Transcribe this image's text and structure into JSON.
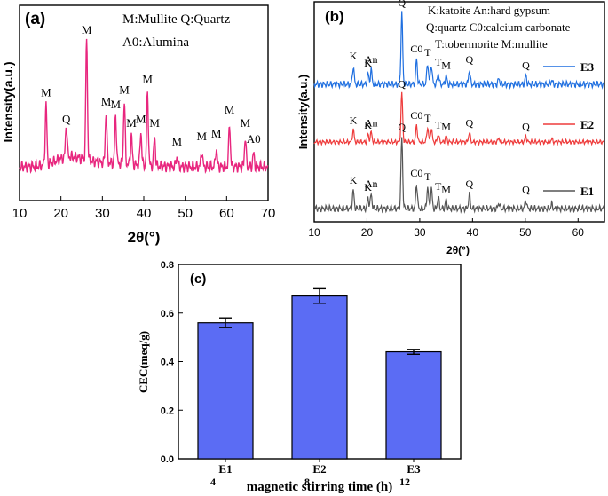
{
  "chart_data": [
    {
      "id": "a",
      "type": "line",
      "panel_label": "(a)",
      "xlabel": "2θ(°)",
      "ylabel": "Intensity(a.u.)",
      "xlim": [
        10,
        70
      ],
      "xticks": [
        "10",
        "20",
        "30",
        "40",
        "50",
        "60",
        "70"
      ],
      "legend_lines": [
        "M:Mullite   Q:Quartz",
        "A0:Alumina"
      ],
      "color": "#e8267e",
      "peaks": [
        {
          "x": 16.4,
          "h": 0.45,
          "label": "M"
        },
        {
          "x": 21.3,
          "h": 0.25,
          "label": "Q"
        },
        {
          "x": 26.2,
          "h": 0.92,
          "label": "M"
        },
        {
          "x": 30.9,
          "h": 0.38,
          "label": "M"
        },
        {
          "x": 33.2,
          "h": 0.36,
          "label": "M"
        },
        {
          "x": 35.3,
          "h": 0.47,
          "label": "M"
        },
        {
          "x": 37.0,
          "h": 0.22,
          "label": "M"
        },
        {
          "x": 39.3,
          "h": 0.25,
          "label": "M"
        },
        {
          "x": 40.9,
          "h": 0.55,
          "label": "M"
        },
        {
          "x": 42.6,
          "h": 0.22,
          "label": "M"
        },
        {
          "x": 48.0,
          "h": 0.08,
          "label": "M"
        },
        {
          "x": 54.0,
          "h": 0.12,
          "label": "M"
        },
        {
          "x": 57.5,
          "h": 0.14,
          "label": "M"
        },
        {
          "x": 60.7,
          "h": 0.32,
          "label": "M"
        },
        {
          "x": 64.5,
          "h": 0.22,
          "label": "M"
        },
        {
          "x": 66.5,
          "h": 0.1,
          "label": "A0"
        }
      ]
    },
    {
      "id": "b",
      "type": "line",
      "panel_label": "(b)",
      "xlabel": "2θ(°)",
      "ylabel": "Intensity(a.u.)",
      "xlim": [
        10,
        65
      ],
      "xticks": [
        "10",
        "20",
        "30",
        "40",
        "50",
        "60"
      ],
      "legend_lines": [
        "K:katoite   An:hard gypsum",
        "Q:quartz   C0:calcium carbonate",
        "T:tobermorite   M:mullite"
      ],
      "peaks": [
        {
          "x": 17.4,
          "h": 0.25,
          "label": "K"
        },
        {
          "x": 20.2,
          "h": 0.15,
          "label": "K"
        },
        {
          "x": 20.8,
          "h": 0.2,
          "label": "An"
        },
        {
          "x": 26.6,
          "h": 1.0,
          "label": "Q"
        },
        {
          "x": 29.4,
          "h": 0.35,
          "label": "C0"
        },
        {
          "x": 31.5,
          "h": 0.3,
          "label": "T"
        },
        {
          "x": 32.2,
          "h": 0.28,
          "label": ""
        },
        {
          "x": 33.5,
          "h": 0.16,
          "label": "T"
        },
        {
          "x": 35.0,
          "h": 0.12,
          "label": "M"
        },
        {
          "x": 39.4,
          "h": 0.2,
          "label": "Q"
        },
        {
          "x": 45.0,
          "h": 0.08,
          "label": ""
        },
        {
          "x": 50.1,
          "h": 0.12,
          "label": "Q"
        },
        {
          "x": 55.0,
          "h": 0.06,
          "label": ""
        }
      ],
      "series": [
        {
          "name": "E3",
          "color": "#1f6fe0"
        },
        {
          "name": "E2",
          "color": "#ee3b3b"
        },
        {
          "name": "E1",
          "color": "#555555"
        }
      ]
    },
    {
      "id": "c",
      "type": "bar",
      "panel_label": "(c)",
      "title": "",
      "xlabel": "magnetic stirring time (h)",
      "ylabel": "CEC(meq/g)",
      "ylim": [
        0.0,
        0.8
      ],
      "yticks": [
        "0.0",
        "0.2",
        "0.4",
        "0.6",
        "0.8"
      ],
      "categories": [
        "E1",
        "E2",
        "E3"
      ],
      "sub_labels": [
        "4",
        "8",
        "12"
      ],
      "values": [
        0.56,
        0.67,
        0.44
      ],
      "errors": [
        0.02,
        0.03,
        0.01
      ],
      "bar_color": "#5b6cf4"
    }
  ]
}
